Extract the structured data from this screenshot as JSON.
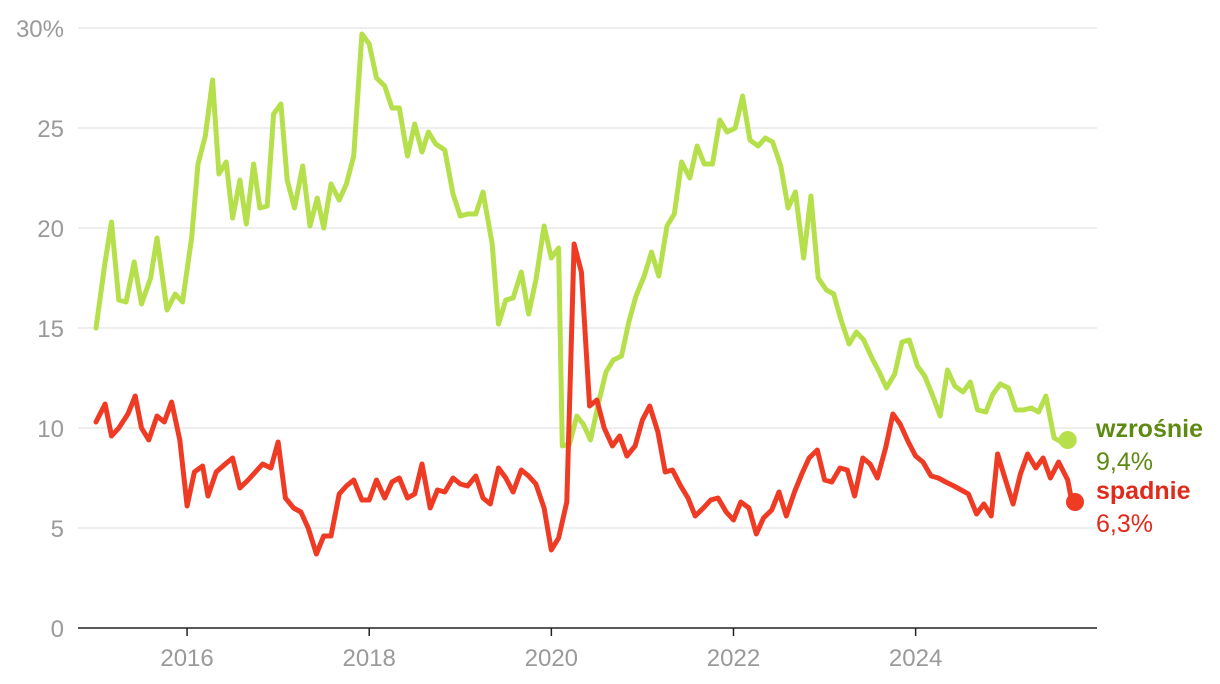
{
  "chart_data": {
    "type": "line",
    "title": "",
    "xlabel": "",
    "ylabel": "",
    "x_range": [
      2015.0,
      2025.75
    ],
    "ylim": [
      0,
      30
    ],
    "y_unit": "%",
    "y_ticks": [
      {
        "value": 0,
        "label": "0"
      },
      {
        "value": 5,
        "label": "5"
      },
      {
        "value": 10,
        "label": "10"
      },
      {
        "value": 15,
        "label": "15"
      },
      {
        "value": 20,
        "label": "20"
      },
      {
        "value": 25,
        "label": "25"
      },
      {
        "value": 30,
        "label": "30%"
      }
    ],
    "x_ticks": [
      {
        "value": 2016,
        "label": "2016"
      },
      {
        "value": 2018,
        "label": "2018"
      },
      {
        "value": 2020,
        "label": "2020"
      },
      {
        "value": 2022,
        "label": "2022"
      },
      {
        "value": 2024,
        "label": "2024"
      }
    ],
    "grid": true,
    "series": [
      {
        "name": "wzrośnie",
        "end_label": "9,4%",
        "color": "#b5e04b",
        "label_color": "#5e8a12",
        "points": [
          [
            2015.0,
            15.0
          ],
          [
            2015.1,
            18.3
          ],
          [
            2015.17,
            20.3
          ],
          [
            2015.25,
            16.4
          ],
          [
            2015.33,
            16.3
          ],
          [
            2015.42,
            18.3
          ],
          [
            2015.5,
            16.2
          ],
          [
            2015.6,
            17.5
          ],
          [
            2015.67,
            19.5
          ],
          [
            2015.78,
            15.9
          ],
          [
            2015.87,
            16.7
          ],
          [
            2015.95,
            16.3
          ],
          [
            2016.05,
            19.5
          ],
          [
            2016.12,
            23.2
          ],
          [
            2016.2,
            24.6
          ],
          [
            2016.28,
            27.4
          ],
          [
            2016.35,
            22.7
          ],
          [
            2016.43,
            23.3
          ],
          [
            2016.5,
            20.5
          ],
          [
            2016.58,
            22.4
          ],
          [
            2016.65,
            20.2
          ],
          [
            2016.73,
            23.2
          ],
          [
            2016.8,
            21.0
          ],
          [
            2016.88,
            21.1
          ],
          [
            2016.95,
            25.7
          ],
          [
            2017.03,
            26.2
          ],
          [
            2017.1,
            22.4
          ],
          [
            2017.18,
            21.0
          ],
          [
            2017.27,
            23.1
          ],
          [
            2017.35,
            20.1
          ],
          [
            2017.43,
            21.5
          ],
          [
            2017.5,
            20.0
          ],
          [
            2017.58,
            22.2
          ],
          [
            2017.67,
            21.4
          ],
          [
            2017.75,
            22.2
          ],
          [
            2017.83,
            23.6
          ],
          [
            2017.92,
            29.7
          ],
          [
            2018.0,
            29.2
          ],
          [
            2018.08,
            27.5
          ],
          [
            2018.17,
            27.1
          ],
          [
            2018.25,
            26.0
          ],
          [
            2018.33,
            26.0
          ],
          [
            2018.42,
            23.6
          ],
          [
            2018.5,
            25.2
          ],
          [
            2018.58,
            23.8
          ],
          [
            2018.65,
            24.8
          ],
          [
            2018.73,
            24.2
          ],
          [
            2018.83,
            23.9
          ],
          [
            2018.92,
            21.7
          ],
          [
            2019.0,
            20.6
          ],
          [
            2019.08,
            20.7
          ],
          [
            2019.17,
            20.7
          ],
          [
            2019.25,
            21.8
          ],
          [
            2019.35,
            19.2
          ],
          [
            2019.42,
            15.2
          ],
          [
            2019.5,
            16.4
          ],
          [
            2019.58,
            16.5
          ],
          [
            2019.67,
            17.8
          ],
          [
            2019.75,
            15.7
          ],
          [
            2019.83,
            17.4
          ],
          [
            2019.92,
            20.1
          ],
          [
            2020.0,
            18.5
          ],
          [
            2020.08,
            19.0
          ],
          [
            2020.12,
            9.1
          ],
          [
            2020.2,
            9.2
          ],
          [
            2020.28,
            10.6
          ],
          [
            2020.35,
            10.2
          ],
          [
            2020.43,
            9.4
          ],
          [
            2020.52,
            11.3
          ],
          [
            2020.6,
            12.8
          ],
          [
            2020.68,
            13.4
          ],
          [
            2020.77,
            13.6
          ],
          [
            2020.85,
            15.3
          ],
          [
            2020.93,
            16.6
          ],
          [
            2021.02,
            17.6
          ],
          [
            2021.1,
            18.8
          ],
          [
            2021.18,
            17.6
          ],
          [
            2021.27,
            20.1
          ],
          [
            2021.35,
            20.7
          ],
          [
            2021.43,
            23.3
          ],
          [
            2021.52,
            22.5
          ],
          [
            2021.6,
            24.1
          ],
          [
            2021.68,
            23.2
          ],
          [
            2021.77,
            23.2
          ],
          [
            2021.85,
            25.4
          ],
          [
            2021.93,
            24.8
          ],
          [
            2022.02,
            25.0
          ],
          [
            2022.1,
            26.6
          ],
          [
            2022.18,
            24.4
          ],
          [
            2022.27,
            24.1
          ],
          [
            2022.35,
            24.5
          ],
          [
            2022.43,
            24.3
          ],
          [
            2022.52,
            23.1
          ],
          [
            2022.6,
            21.0
          ],
          [
            2022.68,
            21.8
          ],
          [
            2022.77,
            18.5
          ],
          [
            2022.85,
            21.6
          ],
          [
            2022.93,
            17.5
          ],
          [
            2023.02,
            16.9
          ],
          [
            2023.1,
            16.7
          ],
          [
            2023.18,
            15.4
          ],
          [
            2023.27,
            14.2
          ],
          [
            2023.35,
            14.8
          ],
          [
            2023.43,
            14.4
          ],
          [
            2023.52,
            13.5
          ],
          [
            2023.6,
            12.8
          ],
          [
            2023.68,
            12.0
          ],
          [
            2023.77,
            12.7
          ],
          [
            2023.85,
            14.3
          ],
          [
            2023.93,
            14.4
          ],
          [
            2024.02,
            13.1
          ],
          [
            2024.1,
            12.6
          ],
          [
            2024.18,
            11.7
          ],
          [
            2024.27,
            10.6
          ],
          [
            2024.35,
            12.9
          ],
          [
            2024.43,
            12.1
          ],
          [
            2024.52,
            11.8
          ],
          [
            2024.6,
            12.3
          ],
          [
            2024.68,
            10.9
          ],
          [
            2024.77,
            10.8
          ],
          [
            2024.85,
            11.7
          ],
          [
            2024.93,
            12.2
          ],
          [
            2025.02,
            12.0
          ],
          [
            2025.1,
            10.9
          ],
          [
            2025.18,
            10.9
          ],
          [
            2025.27,
            11.0
          ],
          [
            2025.35,
            10.8
          ],
          [
            2025.43,
            11.6
          ],
          [
            2025.52,
            9.5
          ],
          [
            2025.6,
            9.3
          ],
          [
            2025.67,
            9.4
          ]
        ]
      },
      {
        "name": "spadnie",
        "end_label": "6,3%",
        "color": "#ef3b24",
        "label_color": "#e02a1a",
        "points": [
          [
            2015.0,
            10.3
          ],
          [
            2015.1,
            11.2
          ],
          [
            2015.17,
            9.6
          ],
          [
            2015.25,
            10.0
          ],
          [
            2015.35,
            10.7
          ],
          [
            2015.43,
            11.6
          ],
          [
            2015.5,
            10.0
          ],
          [
            2015.58,
            9.4
          ],
          [
            2015.67,
            10.6
          ],
          [
            2015.75,
            10.3
          ],
          [
            2015.83,
            11.3
          ],
          [
            2015.92,
            9.4
          ],
          [
            2016.0,
            6.1
          ],
          [
            2016.08,
            7.8
          ],
          [
            2016.17,
            8.1
          ],
          [
            2016.23,
            6.6
          ],
          [
            2016.32,
            7.8
          ],
          [
            2016.42,
            8.2
          ],
          [
            2016.5,
            8.5
          ],
          [
            2016.58,
            7.0
          ],
          [
            2016.67,
            7.4
          ],
          [
            2016.75,
            7.8
          ],
          [
            2016.83,
            8.2
          ],
          [
            2016.92,
            8.0
          ],
          [
            2017.0,
            9.3
          ],
          [
            2017.08,
            6.5
          ],
          [
            2017.17,
            6.0
          ],
          [
            2017.25,
            5.8
          ],
          [
            2017.33,
            5.0
          ],
          [
            2017.42,
            3.7
          ],
          [
            2017.5,
            4.6
          ],
          [
            2017.58,
            4.6
          ],
          [
            2017.67,
            6.7
          ],
          [
            2017.75,
            7.1
          ],
          [
            2017.83,
            7.4
          ],
          [
            2017.92,
            6.4
          ],
          [
            2018.0,
            6.4
          ],
          [
            2018.08,
            7.4
          ],
          [
            2018.17,
            6.5
          ],
          [
            2018.25,
            7.3
          ],
          [
            2018.33,
            7.5
          ],
          [
            2018.42,
            6.5
          ],
          [
            2018.5,
            6.7
          ],
          [
            2018.58,
            8.2
          ],
          [
            2018.67,
            6.0
          ],
          [
            2018.75,
            6.9
          ],
          [
            2018.83,
            6.8
          ],
          [
            2018.92,
            7.5
          ],
          [
            2019.0,
            7.2
          ],
          [
            2019.08,
            7.1
          ],
          [
            2019.17,
            7.6
          ],
          [
            2019.25,
            6.5
          ],
          [
            2019.33,
            6.2
          ],
          [
            2019.42,
            8.0
          ],
          [
            2019.5,
            7.5
          ],
          [
            2019.58,
            6.8
          ],
          [
            2019.67,
            7.9
          ],
          [
            2019.75,
            7.6
          ],
          [
            2019.83,
            7.2
          ],
          [
            2019.92,
            6.0
          ],
          [
            2020.0,
            3.9
          ],
          [
            2020.08,
            4.5
          ],
          [
            2020.17,
            6.3
          ],
          [
            2020.25,
            19.2
          ],
          [
            2020.33,
            17.8
          ],
          [
            2020.42,
            11.1
          ],
          [
            2020.5,
            11.4
          ],
          [
            2020.58,
            10.0
          ],
          [
            2020.67,
            9.1
          ],
          [
            2020.75,
            9.6
          ],
          [
            2020.83,
            8.6
          ],
          [
            2020.92,
            9.1
          ],
          [
            2021.0,
            10.4
          ],
          [
            2021.08,
            11.1
          ],
          [
            2021.17,
            9.8
          ],
          [
            2021.25,
            7.8
          ],
          [
            2021.33,
            7.9
          ],
          [
            2021.42,
            7.1
          ],
          [
            2021.5,
            6.5
          ],
          [
            2021.58,
            5.6
          ],
          [
            2021.67,
            6.0
          ],
          [
            2021.75,
            6.4
          ],
          [
            2021.83,
            6.5
          ],
          [
            2021.92,
            5.8
          ],
          [
            2022.0,
            5.4
          ],
          [
            2022.08,
            6.3
          ],
          [
            2022.17,
            6.0
          ],
          [
            2022.25,
            4.7
          ],
          [
            2022.33,
            5.5
          ],
          [
            2022.42,
            5.9
          ],
          [
            2022.5,
            6.8
          ],
          [
            2022.58,
            5.6
          ],
          [
            2022.67,
            6.8
          ],
          [
            2022.75,
            7.7
          ],
          [
            2022.83,
            8.5
          ],
          [
            2022.92,
            8.9
          ],
          [
            2023.0,
            7.4
          ],
          [
            2023.08,
            7.3
          ],
          [
            2023.17,
            8.0
          ],
          [
            2023.25,
            7.9
          ],
          [
            2023.33,
            6.6
          ],
          [
            2023.42,
            8.5
          ],
          [
            2023.5,
            8.2
          ],
          [
            2023.58,
            7.5
          ],
          [
            2023.67,
            9.0
          ],
          [
            2023.75,
            10.7
          ],
          [
            2023.83,
            10.2
          ],
          [
            2023.92,
            9.3
          ],
          [
            2024.0,
            8.6
          ],
          [
            2024.08,
            8.3
          ],
          [
            2024.17,
            7.6
          ],
          [
            2024.25,
            7.5
          ],
          [
            2024.33,
            7.3
          ],
          [
            2024.42,
            7.1
          ],
          [
            2024.5,
            6.9
          ],
          [
            2024.58,
            6.7
          ],
          [
            2024.67,
            5.7
          ],
          [
            2024.75,
            6.2
          ],
          [
            2024.83,
            5.6
          ],
          [
            2024.9,
            8.7
          ],
          [
            2024.98,
            7.5
          ],
          [
            2025.07,
            6.2
          ],
          [
            2025.15,
            7.7
          ],
          [
            2025.23,
            8.7
          ],
          [
            2025.32,
            8.0
          ],
          [
            2025.4,
            8.5
          ],
          [
            2025.48,
            7.5
          ],
          [
            2025.57,
            8.3
          ],
          [
            2025.67,
            7.4
          ],
          [
            2025.72,
            6.2
          ],
          [
            2025.75,
            6.3
          ]
        ]
      }
    ]
  }
}
